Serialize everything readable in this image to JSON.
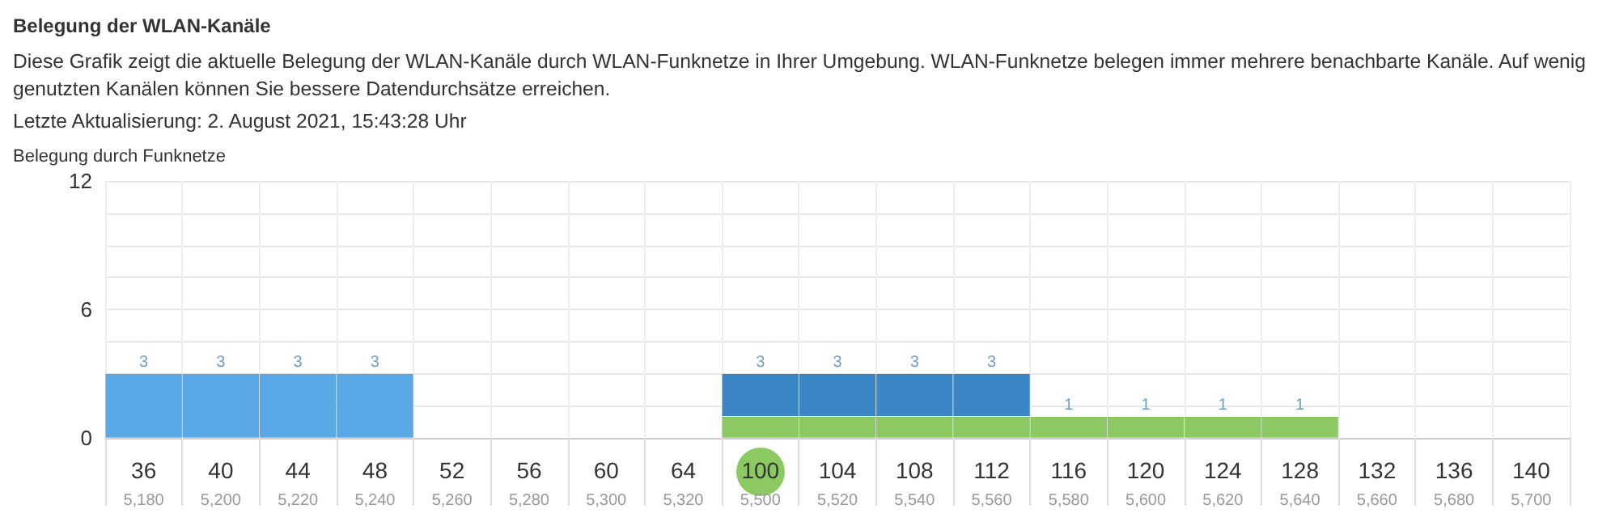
{
  "chart_data": {
    "type": "bar",
    "stacked": true,
    "grid": true,
    "title": "Belegung der WLAN-Kanäle",
    "subtitle": "Diese Grafik zeigt die aktuelle Belegung der WLAN-Kanäle durch WLAN-Funknetze in Ihrer Umgebung. WLAN-Funknetze belegen immer mehrere benachbarte Kanäle. Auf wenig genutzten Kanälen können Sie bessere Datendurchsätze erreichen.",
    "annotations": [
      "Letzte Aktualisierung: 2. August 2021, 15:43:28 Uhr"
    ],
    "ylabel": "Belegung durch Funknetze",
    "categories": [
      "36\n5,180",
      "40\n5,200",
      "44\n5,220",
      "48\n5,240",
      "52\n5,260",
      "56\n5,280",
      "60\n5,300",
      "64\n5,320",
      "100\n5,500",
      "104\n5,520",
      "108\n5,540",
      "112\n5,560",
      "116\n5,580",
      "120\n5,600",
      "124\n5,620",
      "128\n5,640",
      "132\n5,660",
      "136\n5,680",
      "140\n5,700"
    ],
    "series": [
      {
        "color": "#5aa9e6",
        "values": [
          3,
          3,
          3,
          3,
          null,
          null,
          null,
          null,
          null,
          null,
          null,
          null,
          null,
          null,
          null,
          null,
          null,
          null,
          null
        ]
      },
      {
        "color": "#8cc963",
        "values": [
          null,
          null,
          null,
          null,
          null,
          null,
          null,
          null,
          1,
          1,
          1,
          1,
          1,
          1,
          1,
          1,
          null,
          null,
          null
        ]
      },
      {
        "color": "#3b86c4",
        "values": [
          null,
          null,
          null,
          null,
          null,
          null,
          null,
          null,
          2,
          2,
          2,
          2,
          null,
          null,
          null,
          null,
          null,
          null,
          null
        ]
      }
    ],
    "totals": [
      "3",
      "3",
      "3",
      "3",
      null,
      null,
      null,
      null,
      "3",
      "3",
      "3",
      "3",
      "1",
      "1",
      "1",
      "1",
      null,
      null,
      null
    ],
    "ylim": [
      0,
      12
    ],
    "yticks": [
      0,
      {
        "value": 1.5,
        "label": null
      },
      {
        "value": 3,
        "label": null
      },
      {
        "value": 4.5,
        "label": null
      },
      6,
      {
        "value": 7.5,
        "label": null
      },
      {
        "value": 9,
        "label": null
      },
      {
        "value": 10.5,
        "label": null
      },
      12
    ]
  }
}
